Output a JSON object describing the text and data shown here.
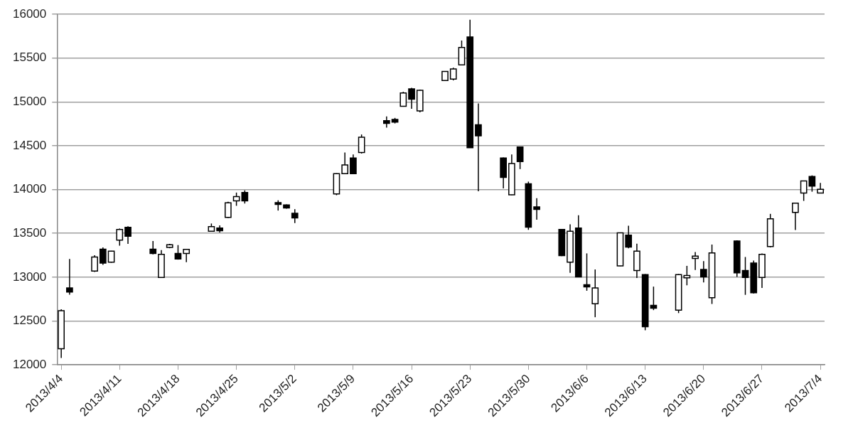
{
  "chart_data": {
    "type": "candlestick",
    "color": "#000000",
    "x": [
      "2013-04-04",
      "2013-04-05",
      "2013-04-08",
      "2013-04-09",
      "2013-04-10",
      "2013-04-11",
      "2013-04-12",
      "2013-04-15",
      "2013-04-16",
      "2013-04-17",
      "2013-04-18",
      "2013-04-19",
      "2013-04-22",
      "2013-04-23",
      "2013-04-24",
      "2013-04-25",
      "2013-04-26",
      "2013-04-30",
      "2013-05-01",
      "2013-05-02",
      "2013-05-07",
      "2013-05-08",
      "2013-05-09",
      "2013-05-10",
      "2013-05-13",
      "2013-05-14",
      "2013-05-15",
      "2013-05-16",
      "2013-05-17",
      "2013-05-20",
      "2013-05-21",
      "2013-05-22",
      "2013-05-23",
      "2013-05-24",
      "2013-05-27",
      "2013-05-28",
      "2013-05-29",
      "2013-05-30",
      "2013-05-31",
      "2013-06-03",
      "2013-06-04",
      "2013-06-05",
      "2013-06-06",
      "2013-06-07",
      "2013-06-10",
      "2013-06-11",
      "2013-06-12",
      "2013-06-13",
      "2013-06-14",
      "2013-06-17",
      "2013-06-18",
      "2013-06-19",
      "2013-06-20",
      "2013-06-21",
      "2013-06-24",
      "2013-06-25",
      "2013-06-26",
      "2013-06-27",
      "2013-06-28",
      "2013-07-01",
      "2013-07-02",
      "2013-07-03",
      "2013-07-04"
    ],
    "ohlc": [
      [
        12183,
        12634,
        12078,
        12618
      ],
      [
        12877,
        13208,
        12800,
        12830
      ],
      [
        13070,
        13250,
        13060,
        13230
      ],
      [
        13318,
        13340,
        13140,
        13160
      ],
      [
        13170,
        13300,
        13165,
        13296
      ],
      [
        13422,
        13555,
        13359,
        13545
      ],
      [
        13568,
        13580,
        13380,
        13467
      ],
      [
        13320,
        13413,
        13260,
        13270
      ],
      [
        12997,
        13309,
        12990,
        13261
      ],
      [
        13340,
        13380,
        13330,
        13370
      ],
      [
        13271,
        13366,
        13200,
        13208
      ],
      [
        13271,
        13320,
        13170,
        13316
      ],
      [
        13523,
        13612,
        13520,
        13576
      ],
      [
        13560,
        13590,
        13510,
        13530
      ],
      [
        13681,
        13860,
        13675,
        13848
      ],
      [
        13870,
        13965,
        13814,
        13920
      ],
      [
        13965,
        13990,
        13840,
        13870
      ],
      [
        13850,
        13877,
        13760,
        13830
      ],
      [
        13823,
        13830,
        13782,
        13790
      ],
      [
        13728,
        13776,
        13618,
        13675
      ],
      [
        13949,
        14185,
        13935,
        14180
      ],
      [
        14180,
        14422,
        14175,
        14281
      ],
      [
        14359,
        14400,
        14180,
        14180
      ],
      [
        14422,
        14628,
        14410,
        14596
      ],
      [
        14785,
        14833,
        14706,
        14754
      ],
      [
        14800,
        14817,
        14754,
        14770
      ],
      [
        14949,
        15115,
        14945,
        15101
      ],
      [
        15148,
        15160,
        14921,
        15031
      ],
      [
        14896,
        15140,
        14880,
        15132
      ],
      [
        15243,
        15350,
        15240,
        15347
      ],
      [
        15260,
        15390,
        15245,
        15375
      ],
      [
        15423,
        15700,
        15420,
        15621
      ],
      [
        15741,
        15937,
        14476,
        14476
      ],
      [
        14738,
        14981,
        13981,
        14612
      ],
      [
        14359,
        14365,
        14012,
        14139
      ],
      [
        13940,
        14400,
        13935,
        14296
      ],
      [
        14486,
        14490,
        14233,
        14318
      ],
      [
        14066,
        14090,
        13540,
        13571
      ],
      [
        13801,
        13902,
        13656,
        13774
      ],
      [
        13545,
        13550,
        13240,
        13246
      ],
      [
        13170,
        13602,
        13050,
        13523
      ],
      [
        13560,
        13706,
        13000,
        13003
      ],
      [
        12914,
        13271,
        12845,
        12889
      ],
      [
        12697,
        13088,
        12543,
        12876
      ],
      [
        13129,
        13510,
        13125,
        13505
      ],
      [
        13480,
        13587,
        13330,
        13344
      ],
      [
        13075,
        13381,
        12991,
        13296
      ],
      [
        13028,
        13035,
        12394,
        12435
      ],
      [
        12678,
        12892,
        12624,
        12646
      ],
      [
        12624,
        13035,
        12590,
        13028
      ],
      [
        12993,
        13129,
        12907,
        13019
      ],
      [
        13214,
        13287,
        13082,
        13240
      ],
      [
        13088,
        13183,
        12940,
        13003
      ],
      [
        12766,
        13372,
        12694,
        13277
      ],
      [
        13413,
        13420,
        13003,
        13050
      ],
      [
        13075,
        13230,
        12798,
        12997
      ],
      [
        13160,
        13190,
        12814,
        12822
      ],
      [
        12997,
        13270,
        12877,
        13261
      ],
      [
        13350,
        13722,
        13340,
        13665
      ],
      [
        13738,
        13850,
        13539,
        13845
      ],
      [
        13959,
        14100,
        13870,
        14097
      ],
      [
        14148,
        14161,
        13975,
        14038
      ],
      [
        13959,
        14075,
        13955,
        14003
      ]
    ],
    "colors": [
      "#ffffff",
      "#000000",
      "#ffffff",
      "#000000",
      "#ffffff",
      "#ffffff",
      "#000000",
      "#000000",
      "#ffffff",
      "#ffffff",
      "#000000",
      "#ffffff",
      "#ffffff",
      "#000000",
      "#ffffff",
      "#ffffff",
      "#000000",
      "#000000",
      "#000000",
      "#000000",
      "#ffffff",
      "#ffffff",
      "#000000",
      "#ffffff",
      "#000000",
      "#000000",
      "#ffffff",
      "#000000",
      "#ffffff",
      "#ffffff",
      "#ffffff",
      "#ffffff",
      "#000000",
      "#000000",
      "#000000",
      "#ffffff",
      "#000000",
      "#000000",
      "#000000",
      "#000000",
      "#ffffff",
      "#000000",
      "#000000",
      "#ffffff",
      "#ffffff",
      "#000000",
      "#ffffff",
      "#000000",
      "#000000",
      "#ffffff",
      "#ffffff",
      "#ffffff",
      "#000000",
      "#ffffff",
      "#000000",
      "#000000",
      "#000000",
      "#ffffff",
      "#ffffff",
      "#ffffff",
      "#ffffff",
      "#000000",
      "#ffffff"
    ],
    "xlim": [
      "2013-04-03T12:00",
      "2013-07-04T12:00"
    ],
    "xticks": [
      {
        "value": "2013-04-04",
        "label": "2013/4/4"
      },
      {
        "value": "2013-04-11",
        "label": "2013/4/11"
      },
      {
        "value": "2013-04-18",
        "label": "2013/4/18"
      },
      {
        "value": "2013-04-25",
        "label": "2013/4/25"
      },
      {
        "value": "2013-05-02",
        "label": "2013/5/2"
      },
      {
        "value": "2013-05-09",
        "label": "2013/5/9"
      },
      {
        "value": "2013-05-16",
        "label": "2013/5/16"
      },
      {
        "value": "2013-05-23",
        "label": "2013/5/23"
      },
      {
        "value": "2013-05-30",
        "label": "2013/5/30"
      },
      {
        "value": "2013-06-06",
        "label": "2013/6/6"
      },
      {
        "value": "2013-06-13",
        "label": "2013/6/13"
      },
      {
        "value": "2013-06-20",
        "label": "2013/6/20"
      },
      {
        "value": "2013-06-27",
        "label": "2013/6/27"
      },
      {
        "value": "2013-07-04",
        "label": "2013/7/4"
      }
    ],
    "ylim": [
      12000,
      16000
    ],
    "yticks": [
      12000,
      12500,
      13000,
      13500,
      14000,
      14500,
      15000,
      15500,
      16000
    ],
    "grid": "y",
    "legend": false
  }
}
